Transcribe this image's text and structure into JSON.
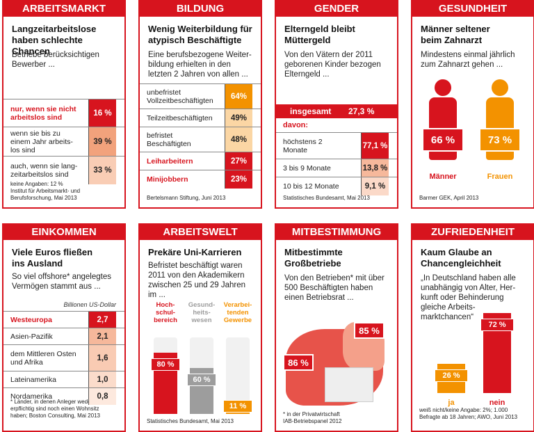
{
  "panels": [
    {
      "header": "ARBEITSMARKT",
      "title": "Langzeitarbeitslose\nhaben schlechte Chancen",
      "intro": "Betriebe berücksichtigen\nBewerber ...",
      "rows": [
        [
          "nur, wenn sie nicht\narbeitslos sind",
          "16 %"
        ],
        [
          "wenn sie bis zu\neinem Jahr arbeits-\nlos sind",
          "39 %"
        ],
        [
          "auch, wenn sie lang-\nzeitarbeitslos sind",
          "33 %"
        ]
      ],
      "note": "keine Angaben: 12 %\nInstitut für Arbeitsmarkt- und\nBerufsforschung, Mai 2013"
    },
    {
      "header": "BILDUNG",
      "title": "Wenig Weiterbildung für\natypisch Beschäftigte",
      "intro": "Eine berufsbezogene Weiter-\nbildung erhielten in den\nletzten 2 Jahren von allen ...",
      "rows": [
        [
          "unbefristet\nVollzeitbeschäftigten",
          "64%"
        ],
        [
          "Teilzeitbeschäftigten",
          "49%"
        ],
        [
          "befristet\nBeschäftigten",
          "48%"
        ],
        [
          "Leiharbeitern",
          "27%"
        ],
        [
          "Minijobbern",
          "23%"
        ]
      ],
      "note": "Bertelsmann Stiftung, Juni 2013"
    },
    {
      "header": "GENDER",
      "title": "Elterngeld bleibt\nMüttergeld",
      "intro": "Von den Vätern der 2011\ngeborenen Kinder bezogen\nElterngeld ...",
      "total": [
        "insgesamt",
        "27,3 %"
      ],
      "subhead": "davon:",
      "rows": [
        [
          "höchstens 2\nMonate",
          "77,1 %"
        ],
        [
          "3 bis 9 Monate",
          "13,8 %"
        ],
        [
          "10 bis 12 Monate",
          "9,1 %"
        ]
      ],
      "note": "Statistisches Bundesamt, Mai 2013"
    },
    {
      "header": "GESUNDHEIT",
      "title": "Männer seltener\nbeim Zahnarzt",
      "intro": "Mindestens einmal jährlich\nzum Zahnarzt gehen ...",
      "figures": [
        {
          "value": "66 %",
          "label": "Männer"
        },
        {
          "value": "73 %",
          "label": "Frauen"
        }
      ],
      "note": "Barmer GEK, April 2013"
    },
    {
      "header": "EINKOMMEN",
      "title": "Viele Euros fließen\nins Ausland",
      "intro": "So viel offshore* angelegtes\nVermögen stammt aus ...",
      "unit": "Billionen US-Dollar",
      "rows": [
        [
          "Westeuropa",
          "2,7"
        ],
        [
          "Asien-Pazifik",
          "2,1"
        ],
        [
          "dem Mittleren Osten\nund Afrika",
          "1,6"
        ],
        [
          "Lateinamerika",
          "1,0"
        ],
        [
          "Nordamerika",
          "0,8"
        ]
      ],
      "note": "* Länder, in denen Anleger weder steu-\nerpflichtig sind noch einen Wohnsitz\nhaben; Boston Consulting, Mai 2013"
    },
    {
      "header": "ARBEITSWELT",
      "title": "Prekäre Uni-Karrieren",
      "intro": "Befristet beschäftigt waren\n2011 von den Akademikern\nzwischen 25 und 29 Jahren\nim ...",
      "bars": {
        "categories": [
          "Hoch-\nschul-\nbereich",
          "Gesund-\nheits-\nwesen",
          "Verarbei-\ntenden\nGewerbe"
        ],
        "values": [
          80,
          60,
          11
        ],
        "value_labels": [
          "80 %",
          "60 %",
          "11 %"
        ],
        "colors": [
          "#d7141e",
          "#9d9d9d",
          "#f39200"
        ],
        "ylim": [
          0,
          100
        ]
      },
      "note": "Statistisches Bundesamt, Mai 2013"
    },
    {
      "header": "MITBESTIMMUNG",
      "title": "Mitbestimmte\nGroßbetriebe",
      "intro": "Von den Betrieben* mit über\n500 Beschäftigten haben\neinen Betriebsrat ...",
      "map_labels": [
        "85 %",
        "86 %"
      ],
      "note": "* in der Privatwirtschaft\nIAB-Betriebspanel 2012"
    },
    {
      "header": "ZUFRIEDENHEIT",
      "title": "Kaum Glaube an\nChancengleichheit",
      "intro": "„In Deutschland haben alle\nunabhängig von Alter, Her-\nkunft oder Behinderung\ngleiche Arbeits-\nmarktchancen“",
      "bars": {
        "categories": [
          "ja",
          "nein"
        ],
        "values": [
          26,
          72
        ],
        "value_labels": [
          "26 %",
          "72 %"
        ],
        "colors": [
          "#f39200",
          "#d7141e"
        ],
        "ylim": [
          0,
          100
        ]
      },
      "note": "weiß nicht/keine Angabe: 2%; 1.000\nBefragte ab 18 Jahren; AWO, Juni 2013"
    }
  ]
}
